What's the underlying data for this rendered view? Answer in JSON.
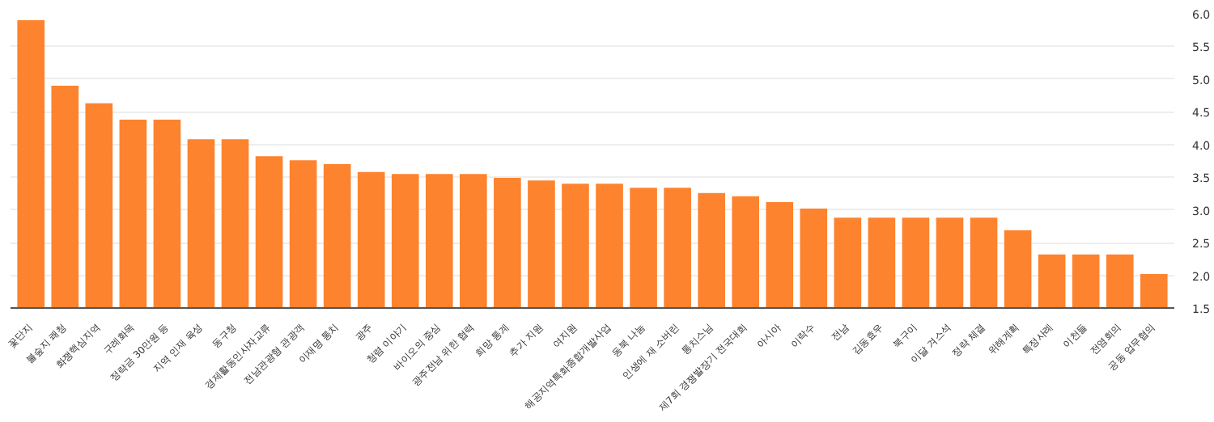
{
  "chart_data": {
    "type": "bar",
    "categories": [
      "꽃단지",
      "불숲지 쾌청",
      "화쟁핵심지역",
      "구례화목",
      "정략금 30만원 등",
      "지역 인재 육성",
      "동구청",
      "경제활동인사자교류",
      "전남관광형 관광객",
      "이재명 통치",
      "광주",
      "청렴 이야기",
      "바이오의 중심",
      "광주전남 위한 협력",
      "희망 통계",
      "추가 지원",
      "여지원",
      "해공지역특화종합개발사업",
      "동북 나눔",
      "인생에 재 소버린",
      "통치스님",
      "제7회 경쟁발장기 전국대회",
      "아시아",
      "이락수",
      "전남",
      "김동효우",
      "북구이",
      "이달 겨스석",
      "정략 체결",
      "위해계획",
      "특정사례",
      "이천들",
      "전염회의",
      "공동 업무협의"
    ],
    "values": [
      5.9,
      4.9,
      4.63,
      4.38,
      4.38,
      4.08,
      4.08,
      3.82,
      3.76,
      3.7,
      3.58,
      3.55,
      3.55,
      3.55,
      3.49,
      3.45,
      3.4,
      3.4,
      3.34,
      3.34,
      3.26,
      3.21,
      3.12,
      3.02,
      2.88,
      2.88,
      2.88,
      2.88,
      2.88,
      2.69,
      2.32,
      2.32,
      2.32,
      2.02
    ],
    "color": "#fd832e",
    "ylim": [
      1.5,
      6.0
    ],
    "yticks": [
      {
        "value": 1.5,
        "label": "1.5"
      },
      {
        "value": 2,
        "label": "2.0"
      },
      {
        "value": 2.5,
        "label": "2.5"
      },
      {
        "value": 3,
        "label": "3.0"
      },
      {
        "value": 3.5,
        "label": "3.5"
      },
      {
        "value": 4,
        "label": "4.0"
      },
      {
        "value": 4.5,
        "label": "4.5"
      },
      {
        "value": 5,
        "label": "5.0"
      },
      {
        "value": 5.5,
        "label": "5.5"
      },
      {
        "value": 6,
        "label": "6.0"
      }
    ],
    "grid": "y"
  }
}
